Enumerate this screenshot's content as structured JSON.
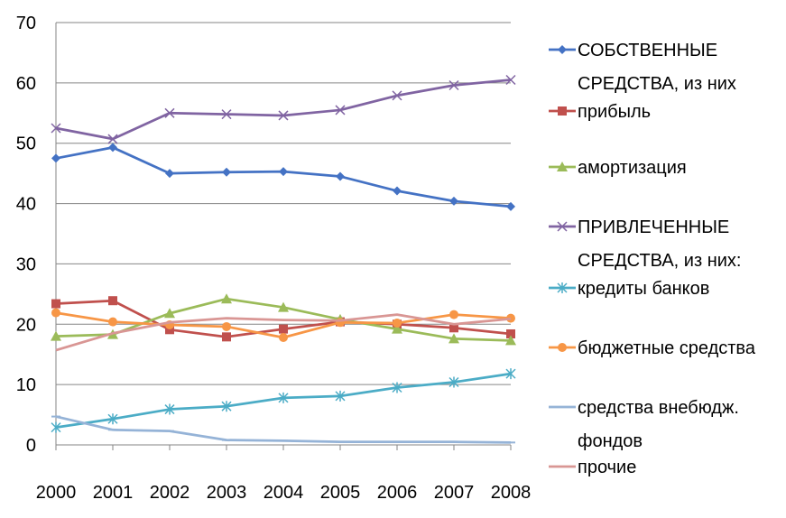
{
  "chart_data": {
    "type": "line",
    "title": "",
    "xlabel": "",
    "ylabel": "",
    "categories": [
      "2000",
      "2001",
      "2002",
      "2003",
      "2004",
      "2005",
      "2006",
      "2007",
      "2008"
    ],
    "ylim": [
      0,
      70
    ],
    "yticks": [
      "0",
      "10",
      "20",
      "30",
      "40",
      "50",
      "60",
      "70"
    ],
    "grid": true,
    "legend_position": "right",
    "series": [
      {
        "name_lines": [
          "СОБСТВЕННЫЕ",
          "СРЕДСТВА, из них"
        ],
        "color": "#4472C4",
        "marker": "diamond",
        "values": [
          47.5,
          49.3,
          45.0,
          45.2,
          45.3,
          44.5,
          42.1,
          40.4,
          39.5
        ]
      },
      {
        "name_lines": [
          "прибыль"
        ],
        "color": "#C0504D",
        "marker": "square",
        "values": [
          23.4,
          23.9,
          19.1,
          17.9,
          19.2,
          20.4,
          20.0,
          19.4,
          18.4
        ]
      },
      {
        "name_lines": [
          "амортизация"
        ],
        "color": "#9BBB59",
        "marker": "triangle",
        "values": [
          18.0,
          18.3,
          21.8,
          24.2,
          22.8,
          20.8,
          19.2,
          17.6,
          17.3
        ]
      },
      {
        "name_lines": [
          "ПРИВЛЕЧЕННЫЕ",
          "СРЕДСТВА, из них:"
        ],
        "color": "#8064A2",
        "marker": "x",
        "values": [
          52.5,
          50.7,
          55.0,
          54.8,
          54.6,
          55.5,
          57.9,
          59.6,
          60.5
        ]
      },
      {
        "name_lines": [
          "кредиты банков"
        ],
        "color": "#4BACC6",
        "marker": "star",
        "values": [
          2.9,
          4.3,
          5.9,
          6.4,
          7.8,
          8.1,
          9.5,
          10.4,
          11.8
        ]
      },
      {
        "name_lines": [
          "бюджетные средства"
        ],
        "color": "#F79646",
        "marker": "circle",
        "values": [
          21.9,
          20.4,
          19.9,
          19.6,
          17.8,
          20.3,
          20.2,
          21.6,
          21.0
        ]
      },
      {
        "name_lines": [
          "средства внебюдж.",
          "фондов"
        ],
        "color": "#95B3D7",
        "marker": "plus",
        "values": [
          4.7,
          2.5,
          2.3,
          0.8,
          0.7,
          0.5,
          0.5,
          0.5,
          0.4
        ]
      },
      {
        "name_lines": [
          "прочие"
        ],
        "color": "#D99694",
        "marker": "none",
        "values": [
          15.7,
          18.5,
          20.3,
          21.0,
          20.7,
          20.6,
          21.6,
          20.0,
          20.9
        ]
      }
    ]
  }
}
